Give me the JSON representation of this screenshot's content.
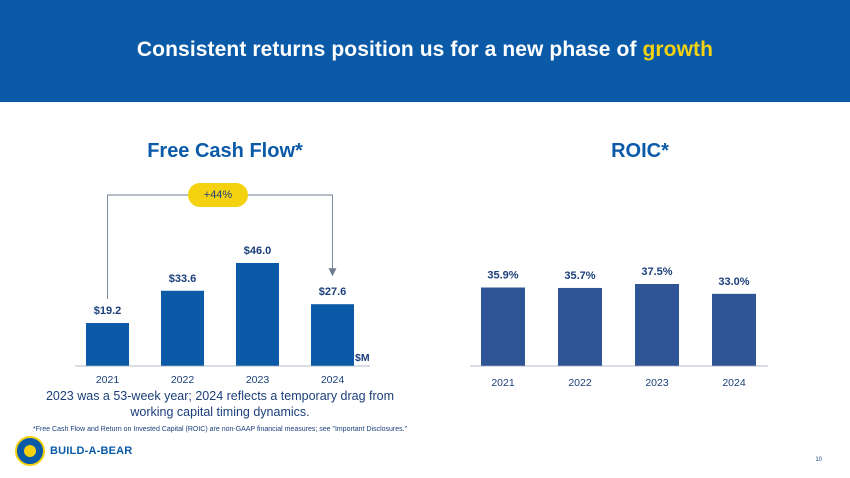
{
  "slide": {
    "title_prefix": "Consistent returns position us for a new phase of ",
    "title_highlight": "growth",
    "note": "2023 was a 53-week year; 2024 reflects a temporary drag from working capital timing dynamics.",
    "disclaimer": "*Free Cash Flow and Return on Invested Capital (ROIC) are non-GAAP financial measures; see \"Important Disclosures.\"",
    "brand": "BUILD-A-BEAR",
    "page_number": "10"
  },
  "colors": {
    "banner": "#0a5aa8",
    "highlight": "#f5d20f",
    "fcf_bar": "#0a5aa8",
    "roic_bar": "#2f5597",
    "text": "#1b3f7a"
  },
  "chart_data": [
    {
      "type": "bar",
      "title": "Free Cash Flow*",
      "categories": [
        "2021",
        "2022",
        "2023",
        "2024"
      ],
      "values": [
        19.2,
        33.6,
        46.0,
        27.6
      ],
      "labels": [
        "$19.2",
        "$33.6",
        "$46.0",
        "$27.6"
      ],
      "unit_label": "$M",
      "ylim": [
        0,
        50
      ],
      "annotation": {
        "text": "+44%",
        "from": "2021",
        "to": "2024"
      },
      "grid": false
    },
    {
      "type": "bar",
      "title": "ROIC*",
      "categories": [
        "2021",
        "2022",
        "2023",
        "2024"
      ],
      "values": [
        35.9,
        35.7,
        37.5,
        33.0
      ],
      "labels": [
        "35.9%",
        "35.7%",
        "37.5%",
        "33.0%"
      ],
      "ylim": [
        0,
        45
      ],
      "grid": false
    }
  ]
}
